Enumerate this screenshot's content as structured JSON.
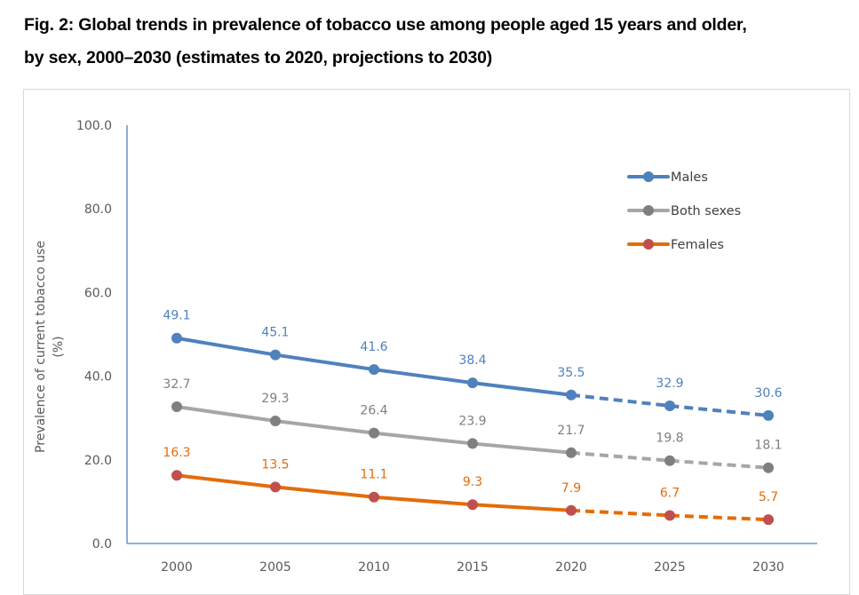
{
  "figure": {
    "title_line1": "Fig. 2: Global trends in prevalence of tobacco use among people aged 15 years and older,",
    "title_line2": "by sex, 2000–2030 (estimates to 2020, projections to 2030)"
  },
  "chart_data": {
    "type": "line",
    "title": "Fig. 2: Global trends in prevalence of tobacco use among people aged 15 years and older, by sex, 2000–2030 (estimates to 2020, projections to 2030)",
    "xlabel": "",
    "ylabel_line1": "Prevalence of current tobacco use",
    "ylabel_line2": "(%)",
    "categories": [
      "2000",
      "2005",
      "2010",
      "2015",
      "2020",
      "2025",
      "2030"
    ],
    "ylim": [
      0,
      100
    ],
    "yticks": [
      "0.0",
      "20.0",
      "40.0",
      "60.0",
      "80.0",
      "100.0"
    ],
    "ytick_values": [
      0,
      20,
      40,
      60,
      80,
      100
    ],
    "grid": false,
    "legend_position": "top-right",
    "estimate_through": "2020",
    "projection_style": "dashed",
    "series": [
      {
        "name": "Males",
        "values": [
          49.1,
          45.1,
          41.6,
          38.4,
          35.5,
          32.9,
          30.6
        ],
        "labels": [
          "49.1",
          "45.1",
          "41.6",
          "38.4",
          "35.5",
          "32.9",
          "30.6"
        ],
        "line_color": "#4f81bd",
        "marker_color": "#4f81bd",
        "label_color": "#4f81bd"
      },
      {
        "name": "Both sexes",
        "values": [
          32.7,
          29.3,
          26.4,
          23.9,
          21.7,
          19.8,
          18.1
        ],
        "labels": [
          "32.7",
          "29.3",
          "26.4",
          "23.9",
          "21.7",
          "19.8",
          "18.1"
        ],
        "line_color": "#a6a6a6",
        "marker_color": "#7f7f7f",
        "label_color": "#7f7f7f"
      },
      {
        "name": "Females",
        "values": [
          16.3,
          13.5,
          11.1,
          9.3,
          7.9,
          6.7,
          5.7
        ],
        "labels": [
          "16.3",
          "13.5",
          "11.1",
          "9.3",
          "7.9",
          "6.7",
          "5.7"
        ],
        "line_color": "#e46c0a",
        "marker_color": "#c0504d",
        "label_color": "#e46c0a"
      }
    ],
    "axis_color": "#4f81bd"
  }
}
